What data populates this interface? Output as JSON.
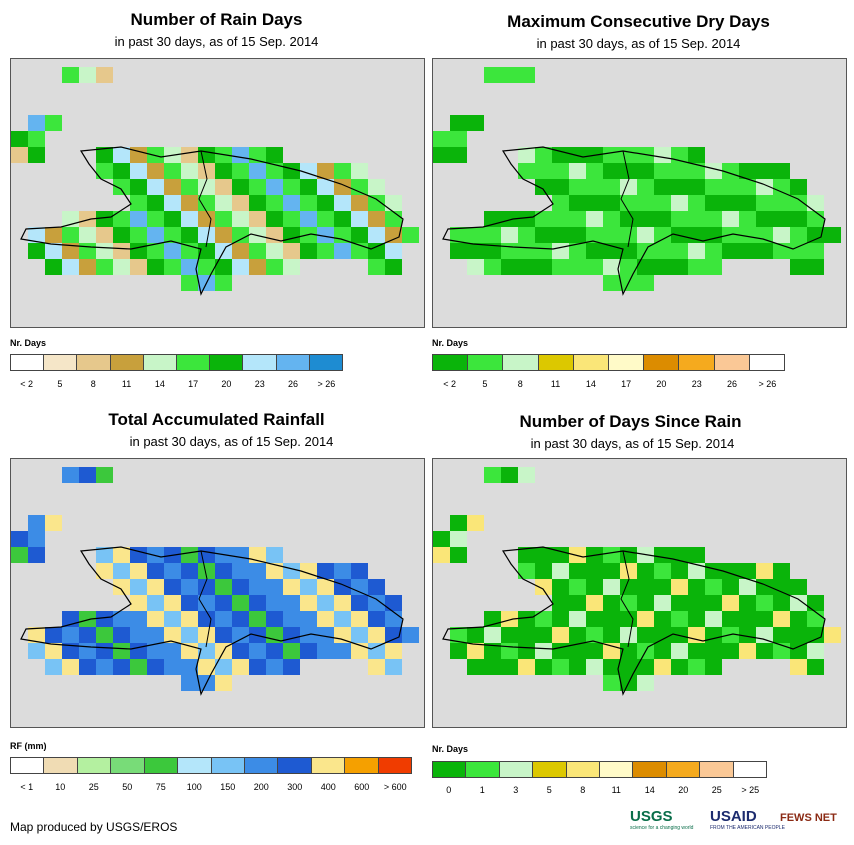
{
  "panels": [
    {
      "title": "Number of Rain Days",
      "subtitle": "in past 30 days, as of 15 Sep. 2014",
      "legend_title": "Nr. Days",
      "legend_labels": [
        "< 2",
        "5",
        "8",
        "11",
        "14",
        "17",
        "20",
        "23",
        "26",
        "> 26"
      ],
      "legend_colors": [
        "#ffffff",
        "#f5e6c8",
        "#e6c88c",
        "#c8a03c",
        "#c8f5c8",
        "#3ce63c",
        "#0ab40a",
        "#b4e6fa",
        "#64b4f0",
        "#1e8cd2"
      ]
    },
    {
      "title": "Maximum Consecutive Dry Days",
      "subtitle": "in past 30 days, as of 15 Sep. 2014",
      "legend_title": "Nr. Days",
      "legend_labels": [
        "< 2",
        "5",
        "8",
        "11",
        "14",
        "17",
        "20",
        "23",
        "26",
        "> 26"
      ],
      "legend_colors": [
        "#0ab40a",
        "#3ce63c",
        "#c8f5c8",
        "#dcc800",
        "#fae678",
        "#fffac8",
        "#dc8c00",
        "#f5aa1e",
        "#fac896",
        "#ffffff"
      ]
    },
    {
      "title": "Total Accumulated Rainfall",
      "subtitle": "in past 30 days, as of 15 Sep. 2014",
      "legend_title": "RF (mm)",
      "legend_labels": [
        "< 1",
        "10",
        "25",
        "50",
        "75",
        "100",
        "150",
        "200",
        "300",
        "400",
        "600",
        "> 600"
      ],
      "legend_colors": [
        "#ffffff",
        "#f0dcb4",
        "#b4f0a0",
        "#78dc78",
        "#3cc83c",
        "#b4e6fa",
        "#78c3f5",
        "#3c8ce6",
        "#1e5ad2",
        "#fae68c",
        "#f5a000",
        "#f03c00"
      ]
    },
    {
      "title": "Number of Days Since Rain",
      "subtitle": "in past 30 days, as of 15 Sep. 2014",
      "legend_title": "Nr. Days",
      "legend_labels": [
        "0",
        "1",
        "3",
        "5",
        "8",
        "11",
        "14",
        "20",
        "25",
        "> 25"
      ],
      "legend_colors": [
        "#0ab40a",
        "#3ce63c",
        "#c8f5c8",
        "#dcc800",
        "#fae678",
        "#fffac8",
        "#dc8c00",
        "#f5aa1e",
        "#fac896",
        "#ffffff"
      ]
    }
  ],
  "credit": "Map produced by USGS/EROS",
  "logos": {
    "usgs": "USGS",
    "usgs_tagline": "science for a changing world",
    "usaid": "USAID",
    "usaid_tagline": "FROM THE AMERICAN PEOPLE",
    "fews": "FEWS NET"
  }
}
